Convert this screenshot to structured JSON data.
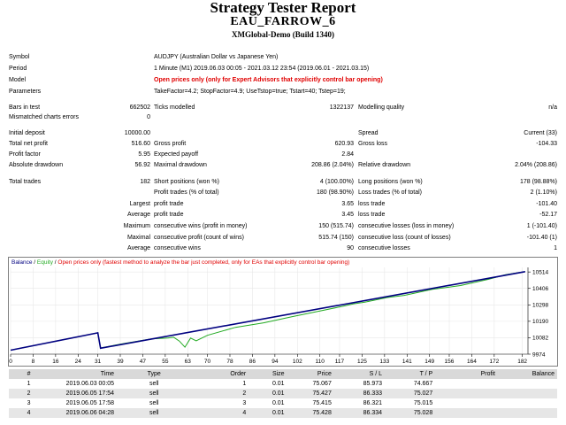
{
  "header": {
    "title": "Strategy Tester Report",
    "subtitle": "EAU_FARROW_6",
    "build": "XMGlobal-Demo (Build 1340)"
  },
  "settings": {
    "symbol_label": "Symbol",
    "symbol": "AUDJPY (Australian Dollar vs Japanese Yen)",
    "period_label": "Period",
    "period": "1 Minute (M1) 2019.06.03 00:05 - 2021.03.12 23:54 (2019.06.01 - 2021.03.15)",
    "model_label": "Model",
    "model": "Open prices only (only for Expert Advisors that explicitly control bar opening)",
    "parameters_label": "Parameters",
    "parameters": "TakeFactor=4.2; StopFactor=4.9; UseTstop=true; Tstart=40; Tstep=19;"
  },
  "bars": {
    "bars_label": "Bars in test",
    "bars": "662502",
    "ticks_label": "Ticks modelled",
    "ticks": "1322137",
    "quality_label": "Modelling quality",
    "quality": "n/a",
    "mismatch_label": "Mismatched charts errors",
    "mismatch": "0"
  },
  "stats": {
    "initial_deposit_label": "Initial deposit",
    "initial_deposit": "10000.00",
    "spread_label": "Spread",
    "spread": "Current (33)",
    "net_profit_label": "Total net profit",
    "net_profit": "516.60",
    "gross_profit_label": "Gross profit",
    "gross_profit": "620.93",
    "gross_loss_label": "Gross loss",
    "gross_loss": "-104.33",
    "profit_factor_label": "Profit factor",
    "profit_factor": "5.95",
    "expected_payoff_label": "Expected payoff",
    "expected_payoff": "2.84",
    "abs_dd_label": "Absolute drawdown",
    "abs_dd": "56.92",
    "max_dd_label": "Maximal drawdown",
    "max_dd": "208.86 (2.04%)",
    "rel_dd_label": "Relative drawdown",
    "rel_dd": "2.04% (208.86)",
    "total_trades_label": "Total trades",
    "total_trades": "182",
    "short_label": "Short positions (won %)",
    "short": "4 (100.00%)",
    "long_label": "Long positions (won %)",
    "long": "178 (98.88%)",
    "profit_trades_label": "Profit trades (% of total)",
    "profit_trades": "180 (98.90%)",
    "loss_trades_label": "Loss trades (% of total)",
    "loss_trades": "2 (1.10%)",
    "largest_label": "Largest",
    "largest_profit_label": "profit trade",
    "largest_profit": "3.65",
    "largest_loss_label": "loss trade",
    "largest_loss": "-101.40",
    "average_label": "Average",
    "average_profit_label": "profit trade",
    "average_profit": "3.45",
    "average_loss_label": "loss trade",
    "average_loss": "-52.17",
    "maximum_label": "Maximum",
    "max_cons_wins_label": "consecutive wins (profit in money)",
    "max_cons_wins": "150 (515.74)",
    "max_cons_losses_label": "consecutive losses (loss in money)",
    "max_cons_losses": "1 (-101.40)",
    "maximal_label": "Maximal",
    "maximal_cons_profit_label": "consecutive profit (count of wins)",
    "maximal_cons_profit": "515.74 (150)",
    "maximal_cons_loss_label": "consecutive loss (count of losses)",
    "maximal_cons_loss": "-101.40 (1)",
    "avg_cons_label": "Average",
    "avg_cons_wins_label": "consecutive wins",
    "avg_cons_wins": "90",
    "avg_cons_losses_label": "consecutive losses",
    "avg_cons_losses": "1"
  },
  "chart_data": {
    "type": "line",
    "legend": {
      "balance": "Balance",
      "sep1": " / ",
      "equity": "Equity",
      "sep2": " / ",
      "note": "Open prices only (fastest method to analyze the bar just completed, only for EAs that explicitly control bar opening)"
    },
    "x_ticks": [
      0,
      8,
      16,
      24,
      31,
      39,
      47,
      55,
      63,
      70,
      78,
      86,
      94,
      102,
      110,
      117,
      125,
      133,
      141,
      149,
      156,
      164,
      172,
      182
    ],
    "y_ticks": [
      10514,
      10406,
      10298,
      10190,
      10082,
      9974
    ],
    "xlim": [
      0,
      184
    ],
    "ylim": [
      9974,
      10544
    ],
    "balance": {
      "x": [
        0,
        31,
        32,
        183
      ],
      "y": [
        10000,
        10114,
        10013,
        10516
      ]
    },
    "equity": {
      "x": [
        0,
        31,
        32,
        40,
        50,
        56,
        58,
        60,
        62,
        64,
        66,
        70,
        80,
        90,
        100,
        110,
        118,
        122,
        126,
        134,
        140,
        150,
        160,
        170,
        176,
        183
      ],
      "y": [
        10000,
        10114,
        10015,
        10043,
        10074,
        10080,
        10085,
        10060,
        10020,
        10080,
        10062,
        10098,
        10150,
        10180,
        10220,
        10258,
        10288,
        10305,
        10316,
        10346,
        10360,
        10400,
        10425,
        10466,
        10496,
        10516
      ]
    },
    "colors": {
      "balance": "#000080",
      "equity": "#22aa22",
      "note": "#e00000",
      "grid": "#e8e8e8"
    }
  },
  "trades": {
    "columns": [
      "#",
      "Time",
      "Type",
      "Order",
      "Size",
      "Price",
      "S / L",
      "T / P",
      "Profit",
      "Balance"
    ],
    "rows": [
      [
        "1",
        "2019.06.03 00:05",
        "sell",
        "1",
        "0.01",
        "75.067",
        "85.973",
        "74.667",
        "",
        ""
      ],
      [
        "2",
        "2019.06.05 17:54",
        "sell",
        "2",
        "0.01",
        "75.427",
        "86.333",
        "75.027",
        "",
        ""
      ],
      [
        "3",
        "2019.06.05 17:58",
        "sell",
        "3",
        "0.01",
        "75.415",
        "86.321",
        "75.015",
        "",
        ""
      ],
      [
        "4",
        "2019.06.06 04:28",
        "sell",
        "4",
        "0.01",
        "75.428",
        "86.334",
        "75.028",
        "",
        ""
      ]
    ]
  }
}
